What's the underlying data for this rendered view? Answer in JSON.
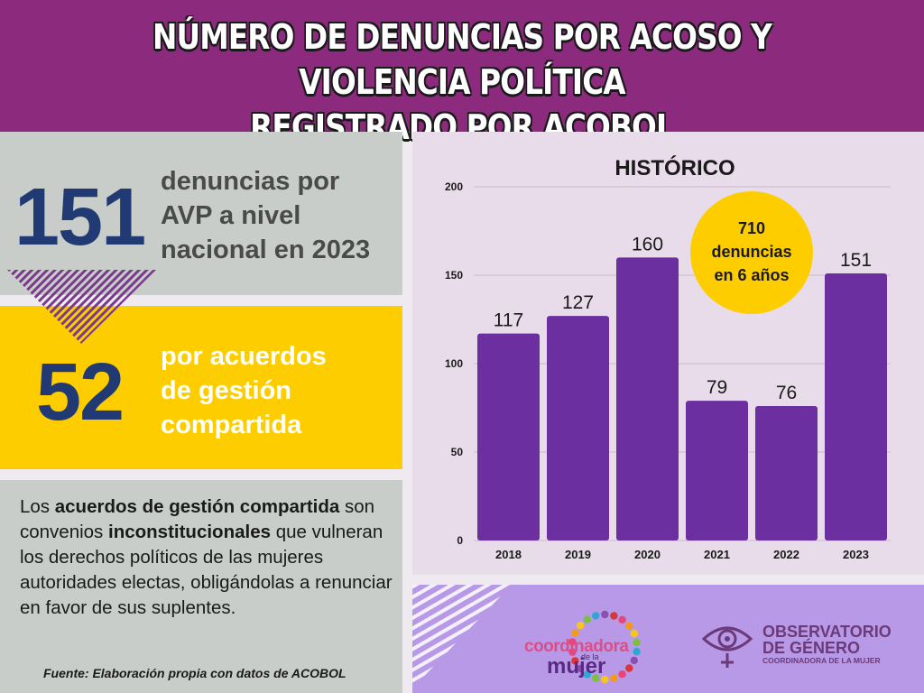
{
  "title_line1": "NÚMERO DE DENUNCIAS POR ACOSO Y VIOLENCIA POLÍTICA",
  "title_line2": "REGISTRADO POR ACOBOL",
  "stat1": {
    "value": "151",
    "line1": "denuncias por",
    "line2": "AVP a nivel",
    "line3": "nacional en 2023"
  },
  "stat2": {
    "value": "52",
    "line1": "por acuerdos",
    "line2": "de gestión",
    "line3": "compartida"
  },
  "paragraph": {
    "p1": "Los ",
    "p1_bold": "acuerdos de gestión compartida",
    "p2": " son convenios ",
    "p2_bold": "inconstitucionales",
    "p3": " que vulneran los derechos políticos de las mujeres autoridades electas, obligándolas a renunciar en favor de sus suplentes."
  },
  "source": "Fuente: Elaboración propia con datos de ACOBOL",
  "badge": {
    "line1": "710",
    "line2": "denuncias",
    "line3": "en 6 años"
  },
  "logos": {
    "coord_line1": "coordinadora",
    "coord_line2": "de la",
    "coord_line3": "mujer",
    "obs_line1": "OBSERVATORIO",
    "obs_line2": "DE GÉNERO",
    "obs_line3": "COORDINADORA DE LA MUJER"
  },
  "colors": {
    "header": "#8c2a7e",
    "bar": "#6b2fa0",
    "yellow": "#fecd00",
    "navy": "#223a73",
    "grey": "#c8cdc9"
  },
  "chart_data": {
    "type": "bar",
    "title": "HISTÓRICO",
    "categories": [
      "2018",
      "2019",
      "2020",
      "2021",
      "2022",
      "2023"
    ],
    "values": [
      117,
      127,
      160,
      79,
      76,
      151
    ],
    "ylim": [
      0,
      200
    ],
    "yticks": [
      0,
      50,
      100,
      150,
      200
    ],
    "grid": true,
    "xlabel": "",
    "ylabel": ""
  }
}
